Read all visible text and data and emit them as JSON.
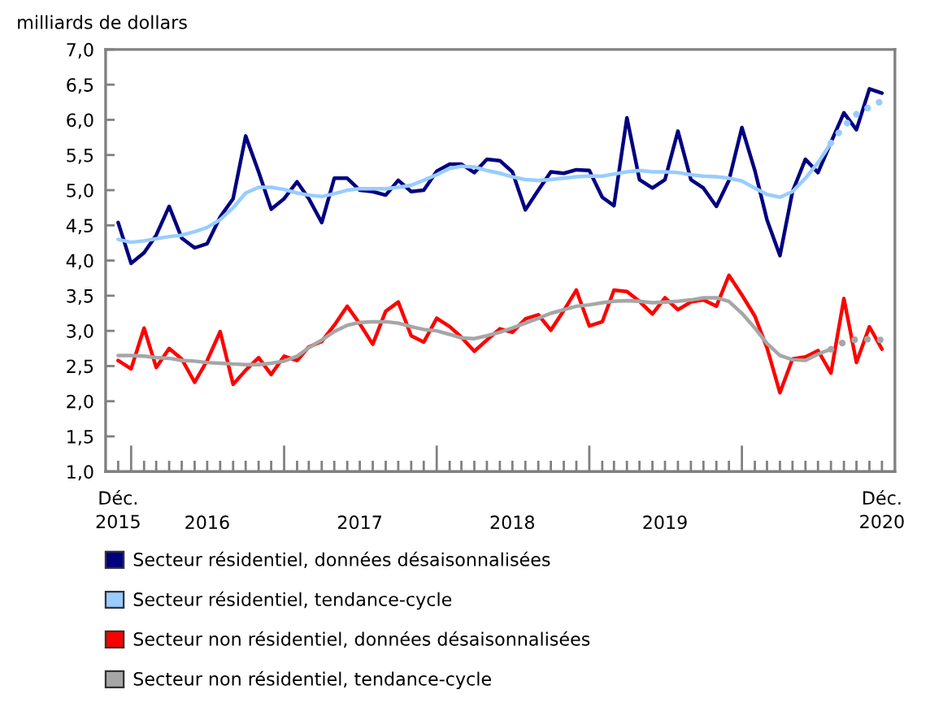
{
  "chart_data": {
    "type": "line",
    "ylabel": "milliards de dollars",
    "x": [
      "2015-12",
      "2016-01",
      "2016-02",
      "2016-03",
      "2016-04",
      "2016-05",
      "2016-06",
      "2016-07",
      "2016-08",
      "2016-09",
      "2016-10",
      "2016-11",
      "2016-12",
      "2017-01",
      "2017-02",
      "2017-03",
      "2017-04",
      "2017-05",
      "2017-06",
      "2017-07",
      "2017-08",
      "2017-09",
      "2017-10",
      "2017-11",
      "2017-12",
      "2018-01",
      "2018-02",
      "2018-03",
      "2018-04",
      "2018-05",
      "2018-06",
      "2018-07",
      "2018-08",
      "2018-09",
      "2018-10",
      "2018-11",
      "2018-12",
      "2019-01",
      "2019-02",
      "2019-03",
      "2019-04",
      "2019-05",
      "2019-06",
      "2019-07",
      "2019-08",
      "2019-09",
      "2019-10",
      "2019-11",
      "2019-12",
      "2020-01",
      "2020-02",
      "2020-03",
      "2020-04",
      "2020-05",
      "2020-06",
      "2020-07",
      "2020-08",
      "2020-09",
      "2020-10",
      "2020-11",
      "2020-12"
    ],
    "series": [
      {
        "name": "Secteur résidentiel, données désaisonnalisées",
        "color": "#000080",
        "values": [
          4.54,
          3.96,
          4.11,
          4.36,
          4.77,
          4.32,
          4.18,
          4.24,
          4.62,
          4.88,
          5.77,
          5.26,
          4.73,
          4.88,
          5.12,
          4.88,
          4.54,
          5.17,
          5.17,
          5.0,
          4.98,
          4.93,
          5.14,
          4.98,
          5.0,
          5.27,
          5.37,
          5.37,
          5.25,
          5.44,
          5.42,
          5.26,
          4.72,
          5.0,
          5.26,
          5.24,
          5.29,
          5.28,
          4.9,
          4.78,
          6.03,
          5.15,
          5.03,
          5.15,
          5.84,
          5.15,
          5.03,
          4.77,
          5.14,
          5.89,
          5.28,
          4.58,
          4.07,
          4.98,
          5.44,
          5.25,
          5.68,
          6.1,
          5.86,
          6.44,
          6.38
        ]
      },
      {
        "name": "Secteur résidentiel, tendance-cycle",
        "color": "#99ccff",
        "values": [
          4.3,
          4.26,
          4.28,
          4.31,
          4.34,
          4.36,
          4.41,
          4.47,
          4.58,
          4.75,
          4.96,
          5.04,
          5.04,
          5.01,
          4.96,
          4.93,
          4.91,
          4.95,
          5.0,
          5.02,
          5.02,
          5.02,
          5.04,
          5.07,
          5.14,
          5.22,
          5.31,
          5.34,
          5.33,
          5.28,
          5.24,
          5.19,
          5.15,
          5.14,
          5.15,
          5.17,
          5.19,
          5.2,
          5.2,
          5.23,
          5.26,
          5.28,
          5.26,
          5.26,
          5.25,
          5.22,
          5.2,
          5.19,
          5.17,
          5.13,
          5.03,
          4.94,
          4.9,
          4.98,
          5.17,
          5.39,
          5.67,
          null,
          null,
          null,
          null
        ]
      },
      {
        "color": "#99ccff",
        "line_style": "dotted",
        "values": [
          null,
          null,
          null,
          null,
          null,
          null,
          null,
          null,
          null,
          null,
          null,
          null,
          null,
          null,
          null,
          null,
          null,
          null,
          null,
          null,
          null,
          null,
          null,
          null,
          null,
          null,
          null,
          null,
          null,
          null,
          null,
          null,
          null,
          null,
          null,
          null,
          null,
          null,
          null,
          null,
          null,
          null,
          null,
          null,
          null,
          null,
          null,
          null,
          null,
          null,
          null,
          null,
          null,
          null,
          null,
          null,
          5.67,
          5.91,
          6.08,
          6.18,
          6.27
        ]
      },
      {
        "name": "Secteur non résidentiel, données désaisonnalisées",
        "color": "#ff0000",
        "values": [
          2.58,
          2.46,
          3.04,
          2.48,
          2.75,
          2.6,
          2.27,
          2.58,
          2.99,
          2.24,
          2.44,
          2.62,
          2.38,
          2.64,
          2.58,
          2.77,
          2.85,
          3.08,
          3.35,
          3.1,
          2.81,
          3.28,
          3.41,
          2.93,
          2.84,
          3.18,
          3.06,
          2.91,
          2.71,
          2.87,
          3.03,
          2.98,
          3.17,
          3.23,
          3.01,
          3.29,
          3.58,
          3.07,
          3.13,
          3.58,
          3.56,
          3.42,
          3.24,
          3.47,
          3.3,
          3.41,
          3.44,
          3.35,
          3.79,
          3.51,
          3.21,
          2.76,
          2.12,
          2.6,
          2.63,
          2.72,
          2.4,
          3.46,
          2.55,
          3.06,
          2.74
        ]
      },
      {
        "name": "Secteur non résidentiel, tendance-cycle",
        "color": "#a6a6a6",
        "values": [
          2.65,
          2.65,
          2.64,
          2.62,
          2.61,
          2.58,
          2.57,
          2.55,
          2.54,
          2.53,
          2.52,
          2.52,
          2.54,
          2.57,
          2.64,
          2.76,
          2.87,
          2.99,
          3.08,
          3.12,
          3.13,
          3.13,
          3.11,
          3.06,
          3.02,
          3.0,
          2.95,
          2.9,
          2.89,
          2.93,
          2.98,
          3.04,
          3.11,
          3.18,
          3.25,
          3.3,
          3.35,
          3.37,
          3.4,
          3.42,
          3.43,
          3.42,
          3.4,
          3.41,
          3.42,
          3.44,
          3.47,
          3.47,
          3.42,
          3.25,
          3.04,
          2.82,
          2.65,
          2.59,
          2.58,
          2.67,
          2.74,
          null,
          null,
          null,
          null
        ]
      },
      {
        "color": "#a6a6a6",
        "line_style": "dotted",
        "values": [
          null,
          null,
          null,
          null,
          null,
          null,
          null,
          null,
          null,
          null,
          null,
          null,
          null,
          null,
          null,
          null,
          null,
          null,
          null,
          null,
          null,
          null,
          null,
          null,
          null,
          null,
          null,
          null,
          null,
          null,
          null,
          null,
          null,
          null,
          null,
          null,
          null,
          null,
          null,
          null,
          null,
          null,
          null,
          null,
          null,
          null,
          null,
          null,
          null,
          null,
          null,
          null,
          null,
          null,
          null,
          null,
          2.74,
          2.84,
          2.88,
          2.88,
          2.87
        ]
      }
    ],
    "xlim": [
      "2015-11",
      "2021-01"
    ],
    "xticks": [
      {
        "value": "2015-12",
        "label": "Déc.\n2015"
      },
      {
        "value": "2016-01",
        "label": null
      },
      {
        "value": "2016-02",
        "label": null
      },
      {
        "value": "2016-03",
        "label": null
      },
      {
        "value": "2016-04",
        "label": null
      },
      {
        "value": "2016-05",
        "label": null
      },
      {
        "value": "2016-06",
        "label": null
      },
      {
        "value": "2016-07",
        "label": "2016"
      },
      {
        "value": "2016-08",
        "label": null
      },
      {
        "value": "2016-09",
        "label": null
      },
      {
        "value": "2016-10",
        "label": null
      },
      {
        "value": "2016-11",
        "label": null
      },
      {
        "value": "2016-12",
        "label": null
      },
      {
        "value": "2017-01",
        "label": null
      },
      {
        "value": "2017-02",
        "label": null
      },
      {
        "value": "2017-03",
        "label": null
      },
      {
        "value": "2017-04",
        "label": null
      },
      {
        "value": "2017-05",
        "label": null
      },
      {
        "value": "2017-06",
        "label": null
      },
      {
        "value": "2017-07",
        "label": "2017"
      },
      {
        "value": "2017-08",
        "label": null
      },
      {
        "value": "2017-09",
        "label": null
      },
      {
        "value": "2017-10",
        "label": null
      },
      {
        "value": "2017-11",
        "label": null
      },
      {
        "value": "2017-12",
        "label": null
      },
      {
        "value": "2018-01",
        "label": null
      },
      {
        "value": "2018-02",
        "label": null
      },
      {
        "value": "2018-03",
        "label": null
      },
      {
        "value": "2018-04",
        "label": null
      },
      {
        "value": "2018-05",
        "label": null
      },
      {
        "value": "2018-06",
        "label": null
      },
      {
        "value": "2018-07",
        "label": "2018"
      },
      {
        "value": "2018-08",
        "label": null
      },
      {
        "value": "2018-09",
        "label": null
      },
      {
        "value": "2018-10",
        "label": null
      },
      {
        "value": "2018-11",
        "label": null
      },
      {
        "value": "2018-12",
        "label": null
      },
      {
        "value": "2019-01",
        "label": null
      },
      {
        "value": "2019-02",
        "label": null
      },
      {
        "value": "2019-03",
        "label": null
      },
      {
        "value": "2019-04",
        "label": null
      },
      {
        "value": "2019-05",
        "label": null
      },
      {
        "value": "2019-06",
        "label": null
      },
      {
        "value": "2019-07",
        "label": "2019"
      },
      {
        "value": "2019-08",
        "label": null
      },
      {
        "value": "2019-09",
        "label": null
      },
      {
        "value": "2019-10",
        "label": null
      },
      {
        "value": "2019-11",
        "label": null
      },
      {
        "value": "2019-12",
        "label": null
      },
      {
        "value": "2020-01",
        "label": null
      },
      {
        "value": "2020-02",
        "label": null
      },
      {
        "value": "2020-03",
        "label": null
      },
      {
        "value": "2020-04",
        "label": null
      },
      {
        "value": "2020-05",
        "label": null
      },
      {
        "value": "2020-06",
        "label": null
      },
      {
        "value": "2020-07",
        "label": null
      },
      {
        "value": "2020-08",
        "label": null
      },
      {
        "value": "2020-09",
        "label": null
      },
      {
        "value": "2020-10",
        "label": null
      },
      {
        "value": "2020-11",
        "label": null
      },
      {
        "value": "2020-12",
        "label": "Déc.\n2020"
      }
    ],
    "ylim": [
      1.0,
      7.0
    ],
    "yticks": [
      {
        "value": 1.0,
        "label": "1,0"
      },
      {
        "value": 1.5,
        "label": "1,5"
      },
      {
        "value": 2.0,
        "label": "2,0"
      },
      {
        "value": 2.5,
        "label": "2,5"
      },
      {
        "value": 3.0,
        "label": "3,0"
      },
      {
        "value": 3.5,
        "label": "3,5"
      },
      {
        "value": 4.0,
        "label": "4,0"
      },
      {
        "value": 4.5,
        "label": "4,5"
      },
      {
        "value": 5.0,
        "label": "5,0"
      },
      {
        "value": 5.5,
        "label": "5,5"
      },
      {
        "value": 6.0,
        "label": "6,0"
      },
      {
        "value": 6.5,
        "label": "6,5"
      },
      {
        "value": 7.0,
        "label": "7,0"
      }
    ],
    "grid": false,
    "legend": "bottom",
    "marker": "none",
    "line_style": "solid"
  }
}
